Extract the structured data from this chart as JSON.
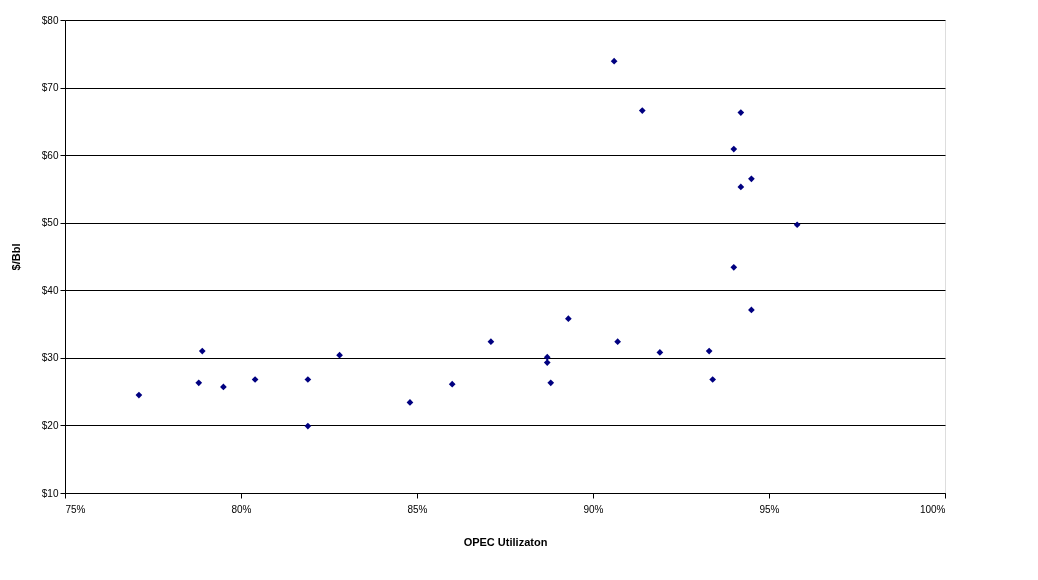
{
  "chart_data": {
    "type": "scatter",
    "xlabel": "OPEC Utilizaton",
    "ylabel": "$/Bbl",
    "marker": "diamond",
    "grid": "y",
    "x": [
      77.1,
      78.8,
      78.9,
      79.5,
      80.4,
      81.9,
      81.9,
      82.8,
      84.8,
      86.0,
      87.1,
      88.7,
      88.7,
      88.8,
      89.3,
      90.6,
      90.7,
      91.4,
      91.9,
      93.3,
      93.4,
      94.0,
      94.0,
      94.2,
      94.2,
      94.5,
      94.5,
      95.8
    ],
    "series": [
      {
        "color": "#000080",
        "values": [
          24.5,
          26.3,
          31.0,
          25.7,
          26.8,
          26.8,
          19.9,
          30.4,
          23.4,
          26.1,
          32.4,
          30.1,
          29.3,
          26.3,
          35.8,
          73.9,
          32.4,
          66.6,
          30.8,
          31.0,
          26.8,
          43.4,
          60.9,
          55.3,
          66.3,
          56.5,
          37.1,
          49.7
        ]
      }
    ],
    "xlim": [
      75,
      100
    ],
    "ylim": [
      10,
      80
    ],
    "xticks": [
      {
        "value": 75,
        "label": "75%"
      },
      {
        "value": 80,
        "label": "80%"
      },
      {
        "value": 85,
        "label": "85%"
      },
      {
        "value": 90,
        "label": "90%"
      },
      {
        "value": 95,
        "label": "95%"
      },
      {
        "value": 100,
        "label": "100%"
      }
    ],
    "yticks": [
      {
        "value": 10,
        "label": "$10"
      },
      {
        "value": 20,
        "label": "$20"
      },
      {
        "value": 30,
        "label": "$30"
      },
      {
        "value": 40,
        "label": "$40"
      },
      {
        "value": 50,
        "label": "$50"
      },
      {
        "value": 60,
        "label": "$60"
      },
      {
        "value": 70,
        "label": "$70"
      },
      {
        "value": 80,
        "label": "$80"
      }
    ]
  }
}
